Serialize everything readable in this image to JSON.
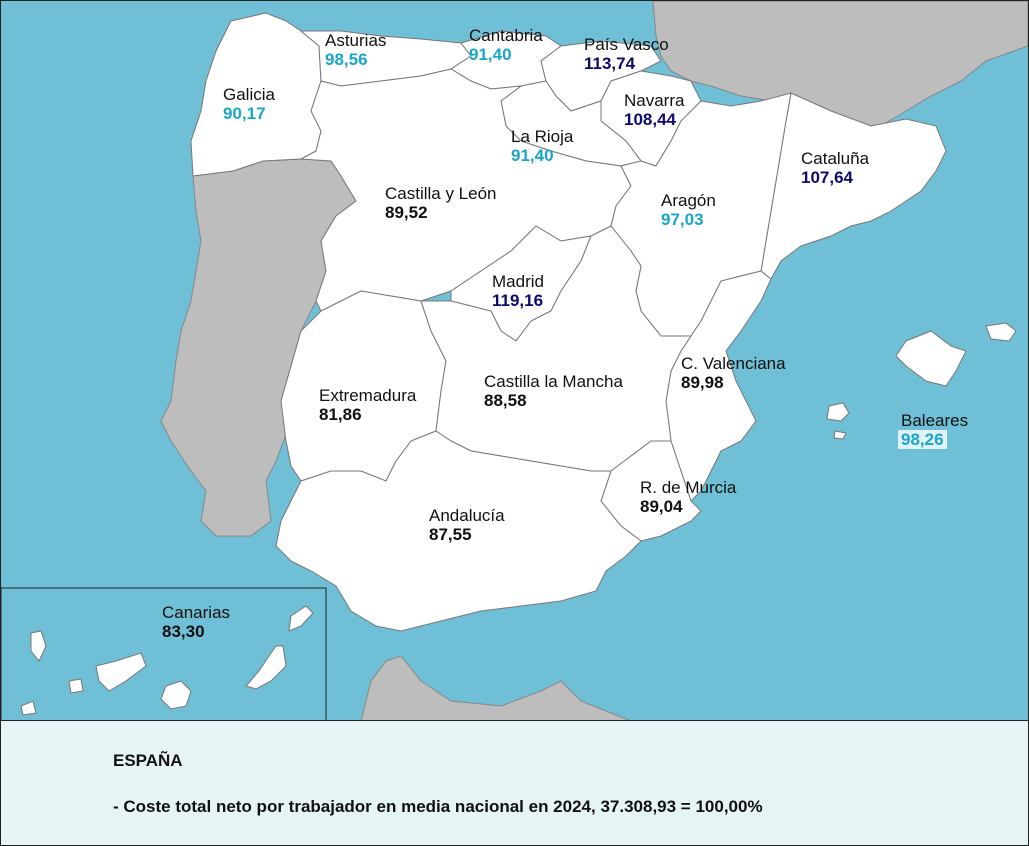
{
  "colors": {
    "sea": "#6fbfd6",
    "land_other": "#bdbdbd",
    "region_fill": "#ffffff",
    "border": "#777777",
    "value_high": "#0b0b6e",
    "value_mid": "#1aa6c9",
    "value_low": "#111111",
    "footer_bg": "#e6f4f6"
  },
  "regions": {
    "galicia": {
      "name": "Galicia",
      "value": "90,17"
    },
    "asturias": {
      "name": "Asturias",
      "value": "98,56"
    },
    "cantabria": {
      "name": "Cantabria",
      "value": "91,40"
    },
    "pais_vasco": {
      "name": "País Vasco",
      "value": "113,74"
    },
    "navarra": {
      "name": "Navarra",
      "value": "108,44"
    },
    "la_rioja": {
      "name": "La Rioja",
      "value": "91,40"
    },
    "cataluna": {
      "name": "Cataluña",
      "value": "107,64"
    },
    "castilla_leon": {
      "name": "Castilla y León",
      "value": "89,52"
    },
    "aragon": {
      "name": "Aragón",
      "value": "97,03"
    },
    "madrid": {
      "name": "Madrid",
      "value": "119,16"
    },
    "c_valenciana": {
      "name": "C. Valenciana",
      "value": "89,98"
    },
    "extremadura": {
      "name": "Extremadura",
      "value": "81,86"
    },
    "castilla_mancha": {
      "name": "Castilla la Mancha",
      "value": "88,58"
    },
    "baleares": {
      "name": "Baleares",
      "value": "98,26"
    },
    "murcia": {
      "name": "R. de Murcia",
      "value": "89,04"
    },
    "andalucia": {
      "name": "Andalucía",
      "value": "87,55"
    },
    "canarias": {
      "name": "Canarias",
      "value": "83,30"
    }
  },
  "footer": {
    "title": "ESPAÑA",
    "note": "- Coste total neto por trabajador en media nacional en 2024, 37.308,93 = 100,00%"
  }
}
